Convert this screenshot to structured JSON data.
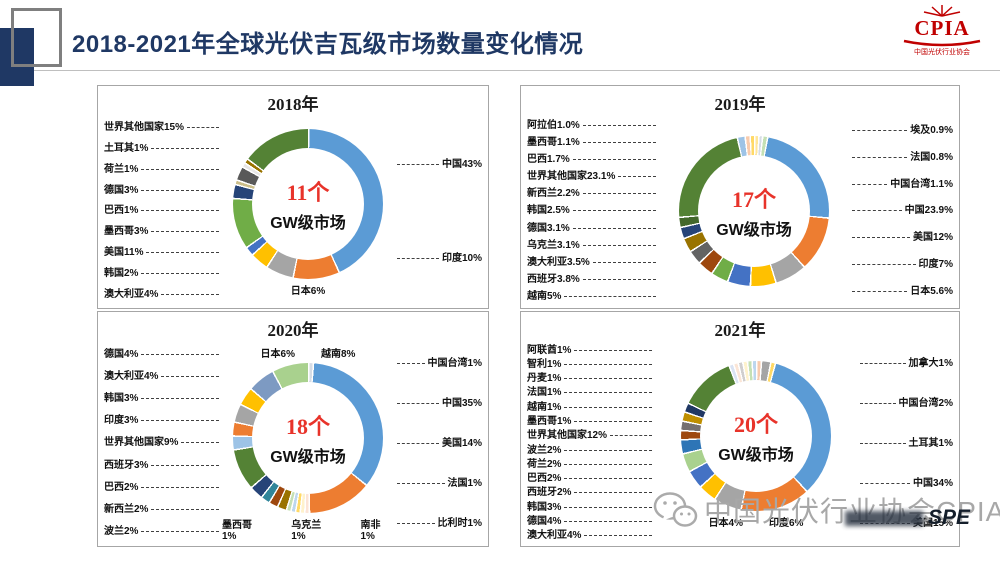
{
  "header": {
    "title": "2018-2021年全球光伏吉瓦级市场数量变化情况",
    "logo_text": "CPIA",
    "logo_sub": "中国光伏行业协会"
  },
  "watermark": {
    "text": "中国光伏行业协会CPIA",
    "stamp": "SPE"
  },
  "colors": {
    "accent_red": "#e8332a",
    "title_navy": "#1f3864",
    "logo_red": "#c00000"
  },
  "chart_data": [
    {
      "type": "donut",
      "title": "2018年",
      "center_count": "11个",
      "center_label": "GW级市场",
      "segments": [
        {
          "name": "中国",
          "pct": 43,
          "color": "#5b9bd5"
        },
        {
          "name": "印度",
          "pct": 10,
          "color": "#ed7d31"
        },
        {
          "name": "日本",
          "pct": 6,
          "color": "#a5a5a5"
        },
        {
          "name": "澳大利亚",
          "pct": 4,
          "color": "#ffc000"
        },
        {
          "name": "韩国",
          "pct": 2,
          "color": "#4472c4"
        },
        {
          "name": "美国",
          "pct": 11,
          "color": "#70ad47"
        },
        {
          "name": "墨西哥",
          "pct": 3,
          "color": "#264478"
        },
        {
          "name": "巴西",
          "pct": 1,
          "color": "#cbbe8a"
        },
        {
          "name": "德国",
          "pct": 3,
          "color": "#595959"
        },
        {
          "name": "荷兰",
          "pct": 1,
          "color": "#e7e6e6"
        },
        {
          "name": "土耳其",
          "pct": 1,
          "color": "#997300"
        },
        {
          "name": "世界其他国家",
          "pct": 15,
          "color": "#548235"
        }
      ],
      "labels": {
        "left": [
          "世界其他国家15%",
          "土耳其1%",
          "荷兰1%",
          "德国3%",
          "巴西1%",
          "墨西哥3%",
          "美国11%",
          "韩国2%",
          "澳大利亚4%"
        ],
        "right": [
          "中国43%",
          "印度10%"
        ],
        "top": [],
        "bottom": [
          "日本6%"
        ]
      }
    },
    {
      "type": "donut",
      "title": "2019年",
      "center_count": "17个",
      "center_label": "GW级市场",
      "segments": [
        {
          "name": "埃及",
          "pct": 0.9,
          "color": "#ffe699"
        },
        {
          "name": "法国",
          "pct": 0.8,
          "color": "#d6dce5"
        },
        {
          "name": "中国台湾",
          "pct": 1.1,
          "color": "#c5e0b4"
        },
        {
          "name": "中国",
          "pct": 23.9,
          "color": "#5b9bd5"
        },
        {
          "name": "美国",
          "pct": 12,
          "color": "#ed7d31"
        },
        {
          "name": "印度",
          "pct": 7,
          "color": "#a5a5a5"
        },
        {
          "name": "日本",
          "pct": 5.6,
          "color": "#ffc000"
        },
        {
          "name": "越南",
          "pct": 5,
          "color": "#4472c4"
        },
        {
          "name": "西班牙",
          "pct": 3.8,
          "color": "#70ad47"
        },
        {
          "name": "澳大利亚",
          "pct": 3.5,
          "color": "#9e480e"
        },
        {
          "name": "乌克兰",
          "pct": 3.1,
          "color": "#636363"
        },
        {
          "name": "德国",
          "pct": 3.1,
          "color": "#997300"
        },
        {
          "name": "韩国",
          "pct": 2.5,
          "color": "#264478"
        },
        {
          "name": "新西兰",
          "pct": 2.2,
          "color": "#43682b"
        },
        {
          "name": "世界其他国家",
          "pct": 23.1,
          "color": "#548235"
        },
        {
          "name": "巴西",
          "pct": 1.7,
          "color": "#9dc3e6"
        },
        {
          "name": "墨西哥",
          "pct": 1.1,
          "color": "#f8cbad"
        },
        {
          "name": "阿拉伯",
          "pct": 1.0,
          "color": "#ffd966"
        }
      ],
      "labels": {
        "left": [
          "阿拉伯1.0%",
          "墨西哥1.1%",
          "巴西1.7%",
          "世界其他国家23.1%",
          "新西兰2.2%",
          "韩国2.5%",
          "德国3.1%",
          "乌克兰3.1%",
          "澳大利亚3.5%",
          "西班牙3.8%",
          "越南5%"
        ],
        "right": [
          "埃及0.9%",
          "法国0.8%",
          "中国台湾1.1%",
          "中国23.9%",
          "美国12%",
          "印度7%",
          "日本5.6%"
        ],
        "top": [],
        "bottom": []
      }
    },
    {
      "type": "donut",
      "title": "2020年",
      "center_count": "18个",
      "center_label": "GW级市场",
      "segments": [
        {
          "name": "中国台湾",
          "pct": 1,
          "color": "#d6dce5"
        },
        {
          "name": "中国",
          "pct": 35,
          "color": "#5b9bd5"
        },
        {
          "name": "美国",
          "pct": 14,
          "color": "#ed7d31"
        },
        {
          "name": "法国",
          "pct": 1,
          "color": "#fce4d6"
        },
        {
          "name": "比利时",
          "pct": 1,
          "color": "#fff2cc"
        },
        {
          "name": "南非",
          "pct": 1,
          "color": "#ffd966"
        },
        {
          "name": "乌克兰",
          "pct": 1,
          "color": "#bdd7ee"
        },
        {
          "name": "墨西哥",
          "pct": 1,
          "color": "#c5e0b4"
        },
        {
          "name": "波兰",
          "pct": 2,
          "color": "#997300"
        },
        {
          "name": "新西兰",
          "pct": 2,
          "color": "#9e480e"
        },
        {
          "name": "巴西",
          "pct": 2,
          "color": "#31869b"
        },
        {
          "name": "西班牙",
          "pct": 3,
          "color": "#264478"
        },
        {
          "name": "世界其他国家",
          "pct": 9,
          "color": "#548235"
        },
        {
          "name": "印度",
          "pct": 3,
          "color": "#9dc3e6"
        },
        {
          "name": "韩国",
          "pct": 3,
          "color": "#ed7d31"
        },
        {
          "name": "澳大利亚",
          "pct": 4,
          "color": "#a5a5a5"
        },
        {
          "name": "德国",
          "pct": 4,
          "color": "#ffc000"
        },
        {
          "name": "日本",
          "pct": 6,
          "color": "#7d9ac2"
        },
        {
          "name": "越南",
          "pct": 8,
          "color": "#a9d18e"
        }
      ],
      "labels": {
        "left": [
          "德国4%",
          "澳大利亚4%",
          "韩国3%",
          "印度3%",
          "世界其他国家9%",
          "西班牙3%",
          "巴西2%",
          "新西兰2%",
          "波兰2%"
        ],
        "right": [
          "中国台湾1%",
          "中国35%",
          "美国14%",
          "法国1%",
          "比利时1%"
        ],
        "top": [
          "日本6%",
          "越南8%"
        ],
        "bottom": [
          "墨西哥1%",
          "乌克兰1%",
          "南非1%"
        ]
      }
    },
    {
      "type": "donut",
      "title": "2021年",
      "center_count": "20个",
      "center_label": "GW级市场",
      "segments": [
        {
          "name": "加拿大",
          "pct": 1,
          "color": "#f8cbad"
        },
        {
          "name": "中国台湾",
          "pct": 2,
          "color": "#a5a5a5"
        },
        {
          "name": "土耳其",
          "pct": 1,
          "color": "#ffd966"
        },
        {
          "name": "中国",
          "pct": 34,
          "color": "#5b9bd5"
        },
        {
          "name": "美国",
          "pct": 15,
          "color": "#ed7d31"
        },
        {
          "name": "印度",
          "pct": 6,
          "color": "#a5a5a5"
        },
        {
          "name": "日本",
          "pct": 4,
          "color": "#ffc000"
        },
        {
          "name": "澳大利亚",
          "pct": 4,
          "color": "#4472c4"
        },
        {
          "name": "德国",
          "pct": 4,
          "color": "#a9d18e"
        },
        {
          "name": "韩国",
          "pct": 3,
          "color": "#2e75b6"
        },
        {
          "name": "西班牙",
          "pct": 2,
          "color": "#9e480e"
        },
        {
          "name": "巴西",
          "pct": 2,
          "color": "#757070"
        },
        {
          "name": "荷兰",
          "pct": 2,
          "color": "#bf8f00"
        },
        {
          "name": "波兰",
          "pct": 2,
          "color": "#203864"
        },
        {
          "name": "世界其他国家",
          "pct": 12,
          "color": "#548235"
        },
        {
          "name": "墨西哥",
          "pct": 1,
          "color": "#dae3f3"
        },
        {
          "name": "越南",
          "pct": 1,
          "color": "#fbe5d6"
        },
        {
          "name": "法国",
          "pct": 1,
          "color": "#d0cece"
        },
        {
          "name": "丹麦",
          "pct": 1,
          "color": "#fff2cc"
        },
        {
          "name": "智利",
          "pct": 1,
          "color": "#c5e0b4"
        },
        {
          "name": "阿联酋",
          "pct": 1,
          "color": "#bdd7ee"
        }
      ],
      "labels": {
        "left": [
          "阿联酋1%",
          "智利1%",
          "丹麦1%",
          "法国1%",
          "越南1%",
          "墨西哥1%",
          "世界其他国家12%",
          "波兰2%",
          "荷兰2%",
          "巴西2%",
          "西班牙2%",
          "韩国3%",
          "德国4%",
          "澳大利亚4%"
        ],
        "right": [
          "加拿大1%",
          "中国台湾2%",
          "土耳其1%",
          "中国34%",
          "美国15%"
        ],
        "top": [],
        "bottom": [
          "日本4%",
          "印度6%"
        ]
      }
    }
  ]
}
